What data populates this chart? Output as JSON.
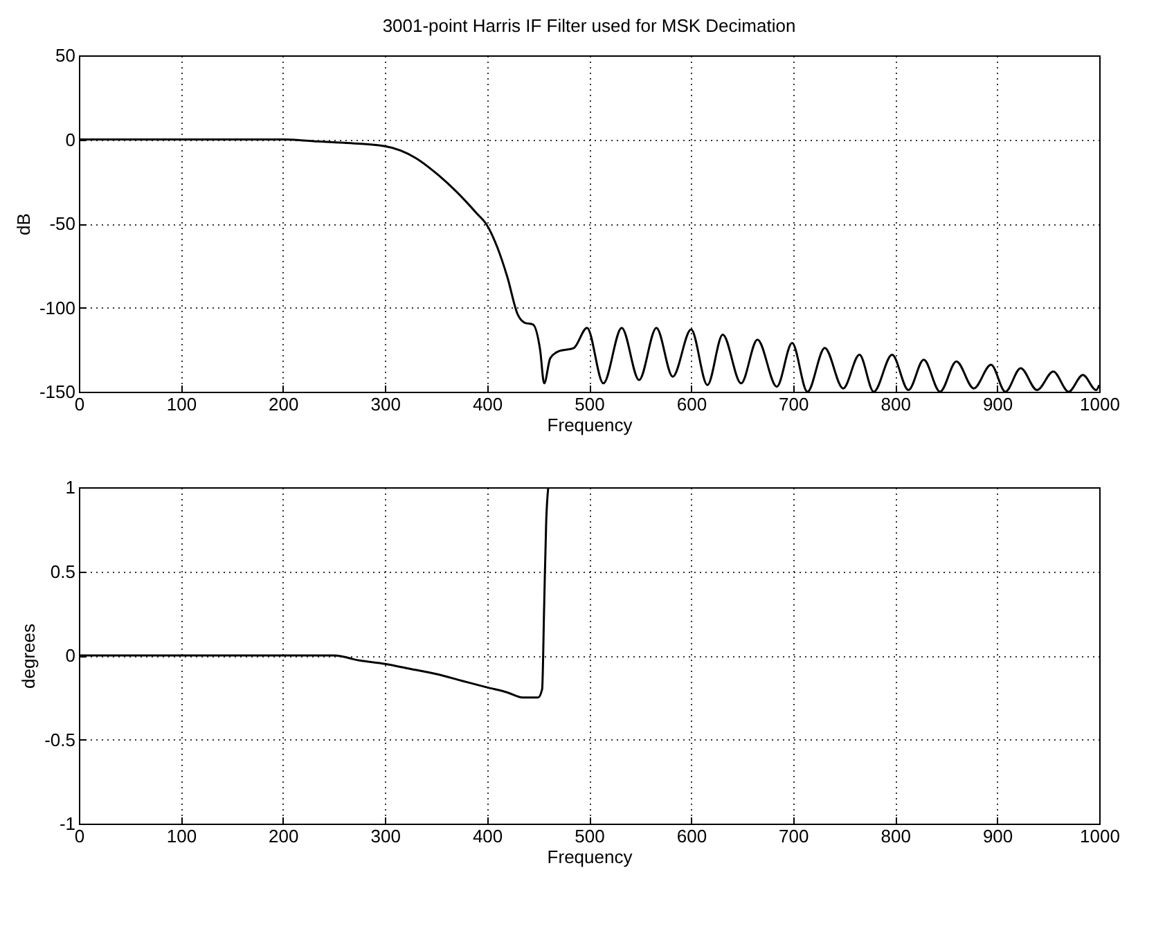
{
  "chart_data": [
    {
      "type": "line",
      "title": "3001-point Harris IF Filter used for MSK Decimation",
      "xlabel": "Frequency",
      "ylabel": "dB",
      "xlim": [
        0,
        1000
      ],
      "xticks": [
        0,
        100,
        200,
        300,
        400,
        500,
        600,
        700,
        800,
        900,
        1000
      ],
      "ylim": [
        -150,
        50
      ],
      "yticks": [
        -150,
        -100,
        -50,
        0,
        50
      ],
      "grid": true,
      "line_style": "solid",
      "series": [
        {
          "color": "#000000",
          "x": [
            0,
            100,
            200,
            230,
            260,
            300,
            330,
            350,
            370,
            390,
            400,
            410,
            420,
            430,
            437,
            445,
            452,
            456,
            462,
            470,
            485,
            498,
            514,
            532,
            549,
            566,
            582,
            600,
            616,
            631,
            649,
            665,
            684,
            699,
            714,
            731,
            749,
            765,
            779,
            797,
            813,
            828,
            844,
            860,
            877,
            894,
            908,
            923,
            939,
            955,
            970,
            984,
            997,
            1000
          ],
          "values": [
            0,
            0,
            0,
            -1,
            -2,
            -4,
            -11,
            -20,
            -31,
            -44,
            -51,
            -64,
            -82,
            -104,
            -109,
            -110,
            -125,
            -145,
            -130,
            -126,
            -124,
            -112,
            -145,
            -112,
            -143,
            -112,
            -141,
            -113,
            -146,
            -116,
            -145,
            -119,
            -147,
            -121,
            -150,
            -124,
            -148,
            -128,
            -150,
            -128,
            -149,
            -131,
            -150,
            -132,
            -148,
            -134,
            -150,
            -136,
            -149,
            -138,
            -150,
            -140,
            -149,
            -146
          ]
        }
      ]
    },
    {
      "type": "line",
      "xlabel": "Frequency",
      "ylabel": "degrees",
      "xlim": [
        0,
        1000
      ],
      "xticks": [
        0,
        100,
        200,
        300,
        400,
        500,
        600,
        700,
        800,
        900,
        1000
      ],
      "ylim": [
        -1,
        1
      ],
      "yticks": [
        -1,
        -0.5,
        0,
        0.5,
        1
      ],
      "grid": true,
      "line_style": "solid",
      "series": [
        {
          "color": "#000000",
          "x": [
            0,
            100,
            200,
            250,
            275,
            300,
            325,
            350,
            375,
            400,
            420,
            435,
            450,
            454,
            456,
            458,
            460
          ],
          "values": [
            0,
            0,
            0,
            0,
            -0.03,
            -0.05,
            -0.08,
            -0.11,
            -0.15,
            -0.19,
            -0.22,
            -0.25,
            -0.25,
            -0.2,
            0.3,
            0.8,
            1
          ]
        }
      ]
    }
  ]
}
